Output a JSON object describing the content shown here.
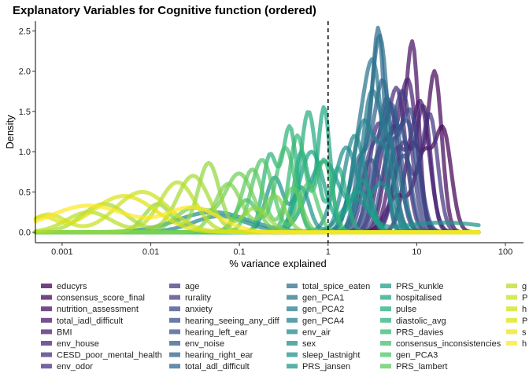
{
  "chart_data": {
    "type": "line",
    "subtype": "density",
    "title": "Explanatory Variables for Cognitive function (ordered)",
    "xlabel": "% variance explained",
    "ylabel": "Density",
    "x_scale": "log10",
    "xlim": [
      0.0005,
      160
    ],
    "ylim": [
      -0.13,
      2.62
    ],
    "x_ticks": [
      0.001,
      0.01,
      0.1,
      1,
      10,
      100
    ],
    "x_tick_labels": [
      "0.001",
      "0.01",
      "0.1",
      "1",
      "10",
      "100"
    ],
    "y_ticks": [
      0.0,
      0.5,
      1.0,
      1.5,
      2.0,
      2.5
    ],
    "y_tick_labels": [
      "0.0",
      "0.5",
      "1.0",
      "1.5",
      "2.0",
      "2.5"
    ],
    "reference_line": {
      "x": 1,
      "style": "dashed"
    },
    "legend_position": "bottom",
    "grid": false,
    "colormap": "viridis",
    "series": [
      {
        "name": "educyrs",
        "color": "#440154",
        "peaks": [
          [
            20,
            1.22,
            0.09
          ],
          [
            12,
            0.95,
            0.1
          ],
          [
            6,
            0.45,
            0.12
          ]
        ]
      },
      {
        "name": "consensus_score_final",
        "color": "#46085c",
        "peaks": [
          [
            16,
            1.95,
            0.08
          ],
          [
            9,
            1.1,
            0.1
          ]
        ]
      },
      {
        "name": "nutrition_assessment",
        "color": "#471063",
        "peaks": [
          [
            9,
            2.23,
            0.07
          ],
          [
            5.5,
            1.3,
            0.1
          ]
        ]
      },
      {
        "name": "total_iadl_difficult",
        "color": "#48186a",
        "peaks": [
          [
            11,
            1.6,
            0.1
          ],
          [
            6,
            1.0,
            0.1
          ]
        ]
      },
      {
        "name": "BMI",
        "color": "#481f70",
        "peaks": [
          [
            8,
            1.85,
            0.1
          ],
          [
            4.5,
            1.1,
            0.1
          ]
        ]
      },
      {
        "name": "env_house",
        "color": "#472676",
        "peaks": [
          [
            12,
            1.5,
            0.08
          ],
          [
            7,
            1.1,
            0.1
          ]
        ]
      },
      {
        "name": "CESD_poor_mental_health",
        "color": "#472c7a",
        "peaks": [
          [
            6,
            1.75,
            0.1
          ],
          [
            3.5,
            1.2,
            0.09
          ]
        ]
      },
      {
        "name": "env_odor",
        "color": "#45337f",
        "peaks": [
          [
            14,
            1.45,
            0.09
          ],
          [
            7,
            0.95,
            0.11
          ]
        ]
      },
      {
        "name": "age",
        "color": "#433a83",
        "peaks": [
          [
            7,
            1.7,
            0.1
          ],
          [
            4,
            1.0,
            0.1
          ]
        ]
      },
      {
        "name": "rurality",
        "color": "#414087",
        "peaks": [
          [
            5,
            1.55,
            0.1
          ],
          [
            3,
            0.9,
            0.09
          ]
        ]
      },
      {
        "name": "anxiety",
        "color": "#3e4889",
        "peaks": [
          [
            8.5,
            1.45,
            0.1
          ],
          [
            5,
            1.0,
            0.1
          ]
        ]
      },
      {
        "name": "hearing_seeing_any_diff",
        "color": "#3b4f8a",
        "peaks": [
          [
            4.5,
            1.6,
            0.1
          ],
          [
            8,
            1.3,
            0.1
          ]
        ]
      },
      {
        "name": "hearing_left_ear",
        "color": "#38568b",
        "peaks": [
          [
            6.5,
            1.3,
            0.1
          ],
          [
            3,
            0.9,
            0.11
          ]
        ]
      },
      {
        "name": "env_noise",
        "color": "#355c8d",
        "peaks": [
          [
            5.5,
            1.45,
            0.09
          ],
          [
            3.5,
            0.8,
            0.1
          ]
        ]
      },
      {
        "name": "hearing_right_ear",
        "color": "#32638d",
        "peaks": [
          [
            4.2,
            1.8,
            0.1
          ],
          [
            2.3,
            0.9,
            0.12
          ]
        ]
      },
      {
        "name": "total_adl_difficult",
        "color": "#2f6a8d",
        "peaks": [
          [
            3.7,
            2.48,
            0.07
          ],
          [
            2.4,
            0.9,
            0.08
          ]
        ]
      },
      {
        "name": "total_spice_eaten",
        "color": "#2d708e",
        "peaks": [
          [
            3.9,
            2.28,
            0.09
          ],
          [
            2.6,
            0.7,
            0.1
          ]
        ]
      },
      {
        "name": "gen_PCA1",
        "color": "#2a768e",
        "peaks": [
          [
            3.3,
            1.92,
            0.1
          ],
          [
            2.2,
            0.9,
            0.1
          ]
        ]
      },
      {
        "name": "gen_PCA2",
        "color": "#287c8e",
        "peaks": [
          [
            3.0,
            1.55,
            0.1
          ],
          [
            5,
            1.0,
            0.12
          ]
        ]
      },
      {
        "name": "gen_PCA4",
        "color": "#26828e",
        "peaks": [
          [
            2.5,
            1.35,
            0.12
          ],
          [
            4.5,
            0.9,
            0.1
          ]
        ]
      },
      {
        "name": "env_air",
        "color": "#24888e",
        "peaks": [
          [
            2.0,
            1.2,
            0.12
          ],
          [
            0.06,
            0.2,
            0.3
          ]
        ]
      },
      {
        "name": "sex",
        "color": "#228e8d",
        "peaks": [
          [
            1.6,
            1.05,
            0.13
          ],
          [
            4,
            0.6,
            0.12
          ],
          [
            0.05,
            0.25,
            0.4
          ]
        ]
      },
      {
        "name": "sleep_lastnight",
        "color": "#20948c",
        "peaks": [
          [
            0.25,
            0.68,
            0.1
          ],
          [
            0.5,
            0.55,
            0.09
          ],
          [
            2,
            0.4,
            0.15
          ],
          [
            20,
            0.12,
            0.5
          ]
        ]
      },
      {
        "name": "PRS_jansen",
        "color": "#1f9a8a",
        "peaks": [
          [
            0.9,
            0.88,
            0.18
          ],
          [
            2.5,
            0.6,
            0.1
          ]
        ]
      },
      {
        "name": "PRS_kunkle",
        "color": "#1fa188",
        "peaks": [
          [
            0.65,
            1.0,
            0.14
          ],
          [
            2.2,
            0.5,
            0.12
          ]
        ]
      },
      {
        "name": "hospitalised",
        "color": "#22a785",
        "peaks": [
          [
            0.9,
            1.55,
            0.07
          ],
          [
            0.5,
            1.0,
            0.08
          ]
        ]
      },
      {
        "name": "pulse",
        "color": "#27ad81",
        "peaks": [
          [
            0.6,
            1.5,
            0.09
          ],
          [
            1.3,
            0.8,
            0.09
          ]
        ]
      },
      {
        "name": "diastolic_avg",
        "color": "#2eb37c",
        "peaks": [
          [
            0.37,
            1.3,
            0.08
          ],
          [
            0.22,
            0.95,
            0.08
          ]
        ]
      },
      {
        "name": "PRS_davies",
        "color": "#38b977",
        "peaks": [
          [
            0.45,
            1.2,
            0.09
          ],
          [
            0.9,
            0.9,
            0.09
          ]
        ]
      },
      {
        "name": "consensus_inconsistencies",
        "color": "#44bf70",
        "peaks": [
          [
            0.33,
            1.05,
            0.11
          ],
          [
            0.12,
            0.4,
            0.12
          ]
        ]
      },
      {
        "name": "gen_PCA3",
        "color": "#52c569",
        "peaks": [
          [
            0.18,
            0.9,
            0.12
          ],
          [
            0.6,
            0.6,
            0.1
          ]
        ]
      },
      {
        "name": "PRS_lambert",
        "color": "#60ca60",
        "peaks": [
          [
            0.14,
            0.78,
            0.12
          ],
          [
            0.4,
            0.55,
            0.1
          ]
        ]
      },
      {
        "name": "",
        "color": "#70cf57",
        "peaks": [
          [
            0.1,
            0.72,
            0.16
          ],
          [
            0.03,
            0.3,
            0.2
          ]
        ]
      },
      {
        "name": "",
        "color": "#81d34d",
        "peaks": [
          [
            0.075,
            0.6,
            0.15
          ],
          [
            0.25,
            0.45,
            0.12
          ]
        ]
      },
      {
        "name": "",
        "color": "#93d741",
        "peaks": [
          [
            0.045,
            0.86,
            0.12
          ],
          [
            0.012,
            0.35,
            0.15
          ],
          [
            0.15,
            0.3,
            0.15
          ]
        ]
      },
      {
        "name": "",
        "color": "#a5db36",
        "peaks": [
          [
            0.03,
            0.7,
            0.18
          ],
          [
            0.003,
            0.35,
            0.25
          ]
        ]
      },
      {
        "name": "",
        "color": "#b8de29",
        "peaks": [
          [
            0.02,
            0.62,
            0.2
          ],
          [
            0.002,
            0.25,
            0.25
          ]
        ]
      },
      {
        "name": "",
        "color": "#cae11f",
        "peaks": [
          [
            0.008,
            0.5,
            0.3
          ],
          [
            0.0007,
            0.22,
            0.2
          ]
        ]
      },
      {
        "name": "",
        "color": "#dde318",
        "peaks": [
          [
            0.005,
            0.45,
            0.35
          ],
          [
            0.0006,
            0.18,
            0.15
          ]
        ]
      },
      {
        "name": "",
        "color": "#fde725",
        "peaks": [
          [
            0.002,
            0.33,
            0.45
          ],
          [
            0.03,
            0.3,
            0.3
          ]
        ]
      }
    ],
    "legend_columns": [
      [
        "educyrs",
        "consensus_score_final",
        "nutrition_assessment",
        "total_iadl_difficult",
        "BMI",
        "env_house",
        "CESD_poor_mental_health",
        "env_odor"
      ],
      [
        "age",
        "rurality",
        "anxiety",
        "hearing_seeing_any_diff",
        "hearing_left_ear",
        "env_noise",
        "hearing_right_ear",
        "total_adl_difficult"
      ],
      [
        "total_spice_eaten",
        "gen_PCA1",
        "gen_PCA2",
        "gen_PCA4",
        "env_air",
        "sex",
        "sleep_lastnight",
        "PRS_jansen"
      ],
      [
        "PRS_kunkle",
        "hospitalised",
        "pulse",
        "diastolic_avg",
        "PRS_davies",
        "consensus_inconsistencies",
        "gen_PCA3",
        "PRS_lambert"
      ],
      [
        "g",
        "P",
        "h",
        "P",
        "s",
        "h"
      ]
    ],
    "legend_column_colors": [
      [
        "#440154",
        "#46085c",
        "#471063",
        "#48186a",
        "#481f70",
        "#472676",
        "#472c7a",
        "#45337f"
      ],
      [
        "#433a83",
        "#414087",
        "#3e4889",
        "#3b4f8a",
        "#38568b",
        "#355c8d",
        "#32638d",
        "#2f6a8d"
      ],
      [
        "#2d708e",
        "#2a768e",
        "#287c8e",
        "#26828e",
        "#24888e",
        "#228e8d",
        "#20948c",
        "#1f9a8a"
      ],
      [
        "#1fa188",
        "#22a785",
        "#27ad81",
        "#2eb37c",
        "#38b977",
        "#44bf70",
        "#52c569",
        "#60ca60"
      ],
      [
        "#b8de29",
        "#cae11f",
        "#d2e21b",
        "#dde318",
        "#ecE51b",
        "#fde725"
      ]
    ]
  }
}
